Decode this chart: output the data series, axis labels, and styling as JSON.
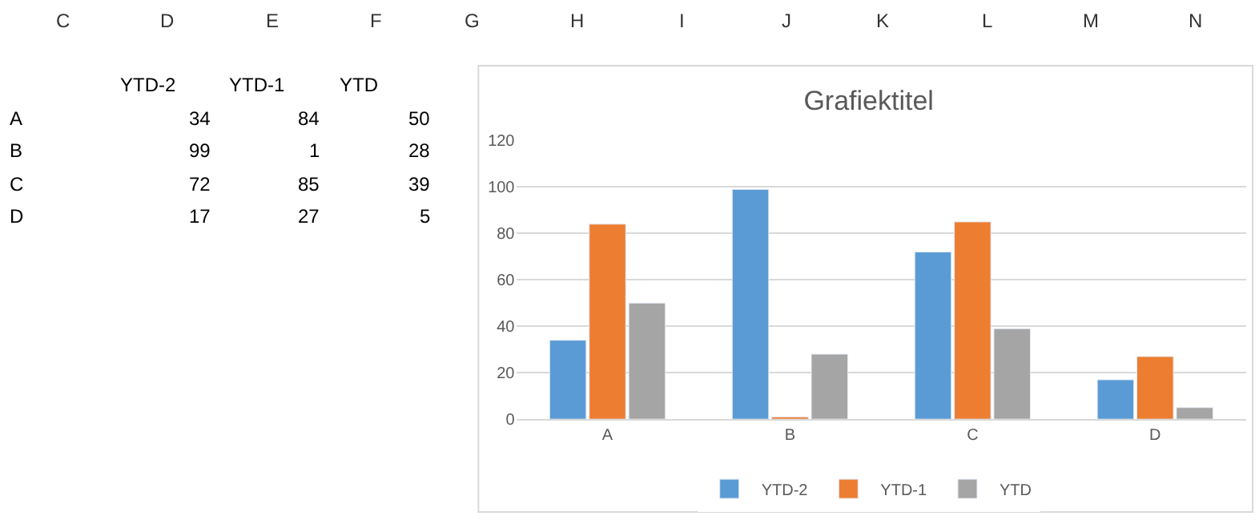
{
  "chart_data": [
    {
      "type": "other",
      "data_labels": true,
      "categories": [
        "A",
        "B",
        "C",
        "D"
      ],
      "series": [
        {
          "name": "YTD-2",
          "values": [
            34,
            99,
            72,
            17
          ]
        },
        {
          "name": "YTD-1",
          "values": [
            84,
            1,
            85,
            27
          ]
        },
        {
          "name": "YTD",
          "values": [
            50,
            28,
            39,
            5
          ]
        }
      ],
      "annotations": [
        "C",
        "D",
        "E",
        "F",
        "G",
        "H",
        "I",
        "J",
        "K",
        "L",
        "M",
        "N"
      ]
    },
    {
      "type": "bar",
      "title": "Grafiektitel",
      "categories": [
        "A",
        "B",
        "C",
        "D"
      ],
      "series": [
        {
          "name": "YTD-2",
          "color": "#5b9bd5",
          "values": [
            34,
            99,
            72,
            17
          ]
        },
        {
          "name": "YTD-1",
          "color": "#ed7d31",
          "values": [
            84,
            1,
            85,
            27
          ]
        },
        {
          "name": "YTD",
          "color": "#a5a5a5",
          "values": [
            50,
            28,
            39,
            5
          ]
        }
      ],
      "ylim": [
        0,
        120
      ],
      "yticks": [
        0,
        20,
        40,
        60,
        80,
        100,
        120
      ],
      "grid": "y",
      "legend": "bottom"
    }
  ]
}
